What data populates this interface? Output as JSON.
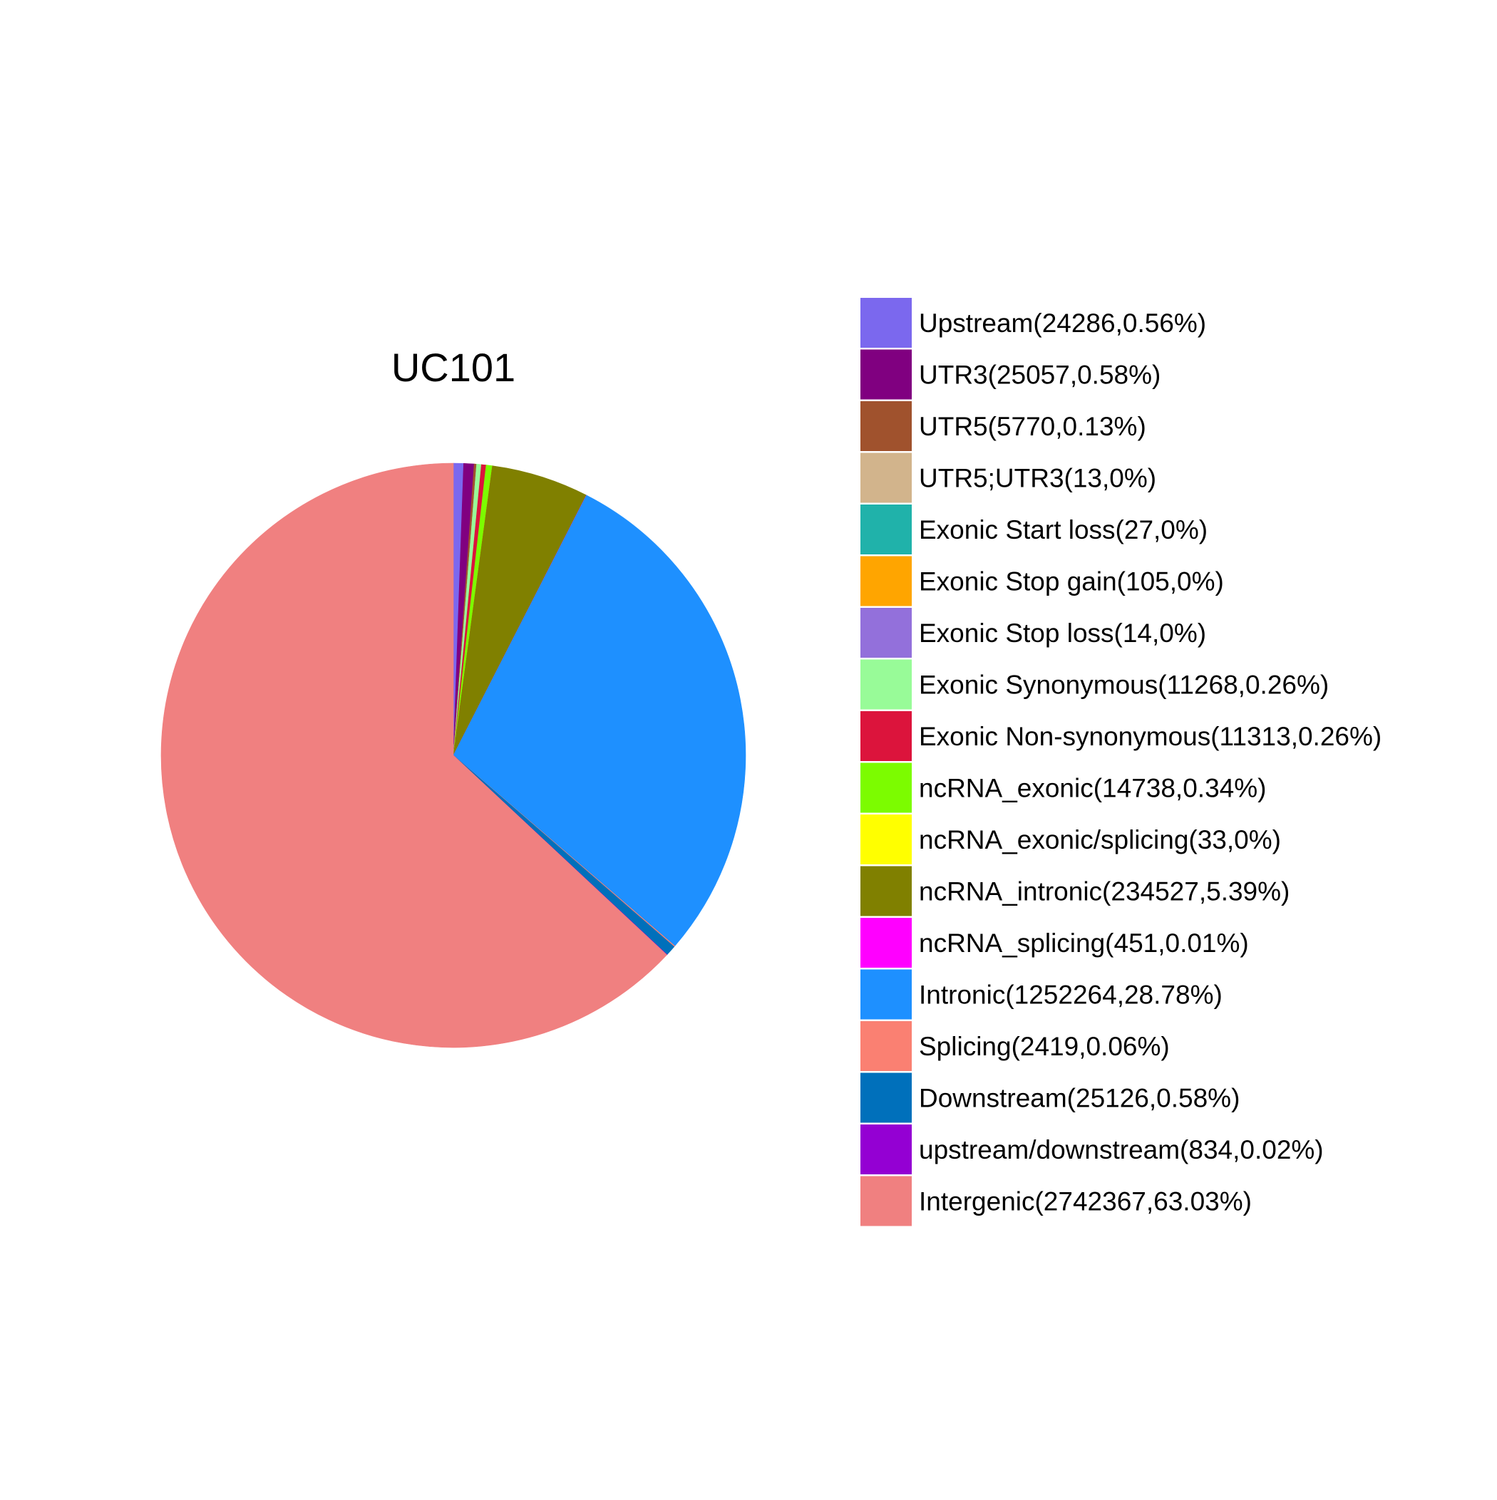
{
  "chart_data": {
    "type": "pie",
    "title": "UC101",
    "legend_position": "right",
    "start_angle_deg": 0,
    "direction": "clockwise",
    "slices": [
      {
        "label": "Upstream(24286,0.56%)",
        "value": 24286,
        "percent": 0.56,
        "color": "#7B68EE"
      },
      {
        "label": "UTR3(25057,0.58%)",
        "value": 25057,
        "percent": 0.58,
        "color": "#800080"
      },
      {
        "label": "UTR5(5770,0.13%)",
        "value": 5770,
        "percent": 0.13,
        "color": "#A0522D"
      },
      {
        "label": "UTR5;UTR3(13,0%)",
        "value": 13,
        "percent": 0,
        "color": "#D2B48C"
      },
      {
        "label": "Exonic Start loss(27,0%)",
        "value": 27,
        "percent": 0,
        "color": "#20B2AA"
      },
      {
        "label": "Exonic Stop gain(105,0%)",
        "value": 105,
        "percent": 0,
        "color": "#FFA500"
      },
      {
        "label": "Exonic Stop loss(14,0%)",
        "value": 14,
        "percent": 0,
        "color": "#9370DB"
      },
      {
        "label": "Exonic Synonymous(11268,0.26%)",
        "value": 11268,
        "percent": 0.26,
        "color": "#98FB98"
      },
      {
        "label": "Exonic Non-synonymous(11313,0.26%)",
        "value": 11313,
        "percent": 0.26,
        "color": "#DC143C"
      },
      {
        "label": "ncRNA_exonic(14738,0.34%)",
        "value": 14738,
        "percent": 0.34,
        "color": "#7CFC00"
      },
      {
        "label": "ncRNA_exonic/splicing(33,0%)",
        "value": 33,
        "percent": 0,
        "color": "#FFFF00"
      },
      {
        "label": "ncRNA_intronic(234527,5.39%)",
        "value": 234527,
        "percent": 5.39,
        "color": "#808000"
      },
      {
        "label": "ncRNA_splicing(451,0.01%)",
        "value": 451,
        "percent": 0.01,
        "color": "#FF00FF"
      },
      {
        "label": "Intronic(1252264,28.78%)",
        "value": 1252264,
        "percent": 28.78,
        "color": "#1E90FF"
      },
      {
        "label": "Splicing(2419,0.06%)",
        "value": 2419,
        "percent": 0.06,
        "color": "#FA8072"
      },
      {
        "label": "Downstream(25126,0.58%)",
        "value": 25126,
        "percent": 0.58,
        "color": "#0070BB"
      },
      {
        "label": "upstream/downstream(834,0.02%)",
        "value": 834,
        "percent": 0.02,
        "color": "#9400D3"
      },
      {
        "label": "Intergenic(2742367,63.03%)",
        "value": 2742367,
        "percent": 63.03,
        "color": "#F08080"
      }
    ]
  }
}
